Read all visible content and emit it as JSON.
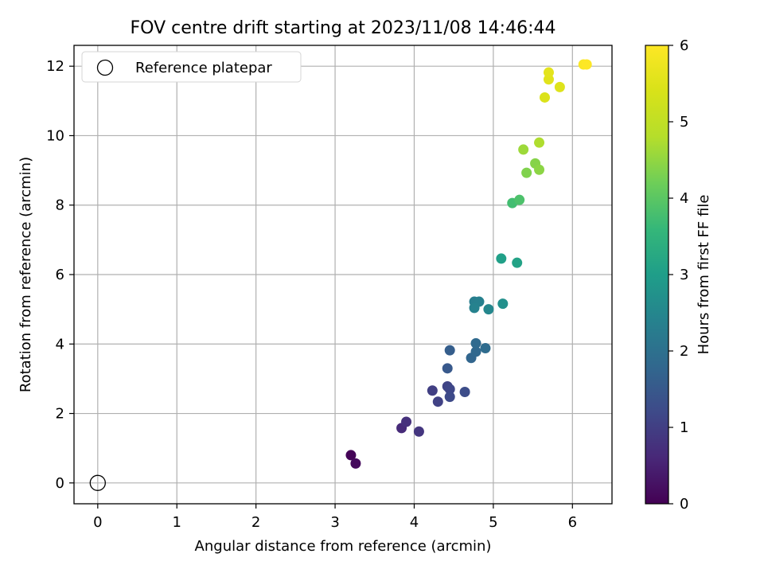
{
  "chart_data": {
    "type": "scatter",
    "title": "FOV centre drift starting at 2023/11/08 14:46:44",
    "xlabel": "Angular distance from reference (arcmin)",
    "ylabel": "Rotation from reference (arcmin)",
    "xlim": [
      -0.3,
      6.5
    ],
    "ylim": [
      -0.6,
      12.6
    ],
    "xticks": [
      0,
      1,
      2,
      3,
      4,
      5,
      6
    ],
    "yticks": [
      0,
      2,
      4,
      6,
      8,
      10,
      12
    ],
    "grid": true,
    "legend": {
      "position": "top-left",
      "entries": [
        "Reference platepar"
      ]
    },
    "reference_point": {
      "x": 0,
      "y": 0,
      "label": "Reference platepar"
    },
    "colorbar": {
      "label": "Hours from first FF file",
      "colormap": "viridis",
      "range": [
        0,
        6
      ],
      "ticks": [
        0,
        1,
        2,
        3,
        4,
        5,
        6
      ]
    },
    "points": [
      {
        "x": 3.2,
        "y": 0.8,
        "hours": 0.05
      },
      {
        "x": 3.26,
        "y": 0.56,
        "hours": 0.15
      },
      {
        "x": 3.84,
        "y": 1.58,
        "hours": 0.65
      },
      {
        "x": 3.9,
        "y": 1.76,
        "hours": 0.75
      },
      {
        "x": 4.06,
        "y": 1.48,
        "hours": 0.85
      },
      {
        "x": 4.23,
        "y": 2.66,
        "hours": 1.0
      },
      {
        "x": 4.3,
        "y": 2.34,
        "hours": 1.05
      },
      {
        "x": 4.42,
        "y": 2.78,
        "hours": 1.1
      },
      {
        "x": 4.45,
        "y": 2.7,
        "hours": 1.15
      },
      {
        "x": 4.45,
        "y": 2.48,
        "hours": 1.2
      },
      {
        "x": 4.64,
        "y": 2.62,
        "hours": 1.25
      },
      {
        "x": 4.42,
        "y": 3.3,
        "hours": 1.5
      },
      {
        "x": 4.45,
        "y": 3.82,
        "hours": 1.6
      },
      {
        "x": 4.72,
        "y": 3.6,
        "hours": 1.75
      },
      {
        "x": 4.78,
        "y": 3.78,
        "hours": 1.8
      },
      {
        "x": 4.78,
        "y": 4.02,
        "hours": 1.85
      },
      {
        "x": 4.9,
        "y": 3.88,
        "hours": 1.9
      },
      {
        "x": 4.76,
        "y": 5.22,
        "hours": 2.3
      },
      {
        "x": 4.82,
        "y": 5.22,
        "hours": 2.35
      },
      {
        "x": 4.76,
        "y": 5.04,
        "hours": 2.4
      },
      {
        "x": 4.94,
        "y": 5.0,
        "hours": 2.5
      },
      {
        "x": 5.12,
        "y": 5.16,
        "hours": 2.7
      },
      {
        "x": 5.1,
        "y": 6.46,
        "hours": 3.05
      },
      {
        "x": 5.3,
        "y": 6.34,
        "hours": 3.1
      },
      {
        "x": 5.24,
        "y": 8.06,
        "hours": 3.75
      },
      {
        "x": 5.33,
        "y": 8.15,
        "hours": 3.85
      },
      {
        "x": 5.42,
        "y": 8.93,
        "hours": 4.35
      },
      {
        "x": 5.53,
        "y": 9.2,
        "hours": 4.4
      },
      {
        "x": 5.58,
        "y": 9.02,
        "hours": 4.45
      },
      {
        "x": 5.38,
        "y": 9.6,
        "hours": 4.6
      },
      {
        "x": 5.58,
        "y": 9.8,
        "hours": 4.75
      },
      {
        "x": 5.65,
        "y": 11.1,
        "hours": 5.45
      },
      {
        "x": 5.84,
        "y": 11.4,
        "hours": 5.5
      },
      {
        "x": 5.7,
        "y": 11.62,
        "hours": 5.55
      },
      {
        "x": 5.7,
        "y": 11.82,
        "hours": 5.6
      },
      {
        "x": 6.14,
        "y": 12.05,
        "hours": 5.95
      },
      {
        "x": 6.18,
        "y": 12.05,
        "hours": 6.0
      }
    ]
  }
}
